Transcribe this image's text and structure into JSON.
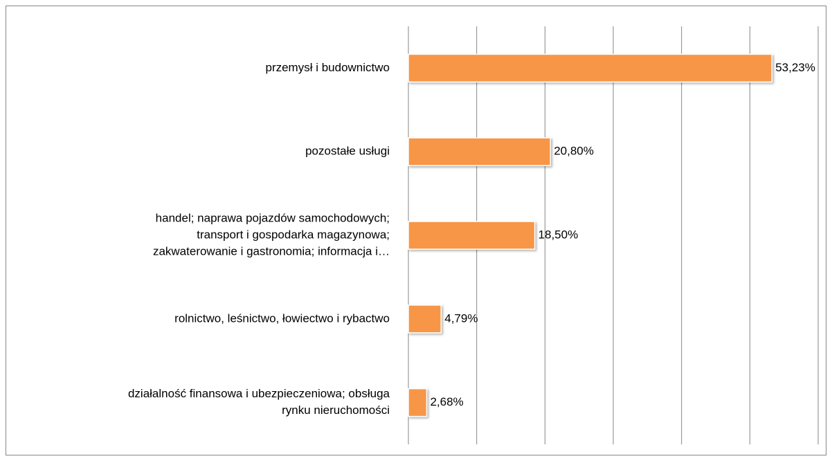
{
  "chart_data": {
    "type": "bar",
    "orientation": "horizontal",
    "categories": [
      [
        "przemysł i budownictwo"
      ],
      [
        "pozostałe usługi"
      ],
      [
        "handel; naprawa pojazdów samochodowych;",
        "transport i gospodarka magazynowa;",
        "zakwaterowanie i gastronomia; informacja i…"
      ],
      [
        "rolnictwo, leśnictwo, łowiectwo i rybactwo"
      ],
      [
        "działalność finansowa i ubezpieczeniowa; obsługa",
        "rynku nieruchomości"
      ]
    ],
    "values": [
      53.23,
      20.8,
      18.5,
      4.79,
      2.68
    ],
    "value_labels": [
      "53,23%",
      "20,80%",
      "18,50%",
      "4,79%",
      "2,68%"
    ],
    "color": "#f79646",
    "xlim": [
      0,
      60
    ],
    "xticks": [
      0,
      10,
      20,
      30,
      40,
      50,
      60
    ],
    "grid": true
  }
}
